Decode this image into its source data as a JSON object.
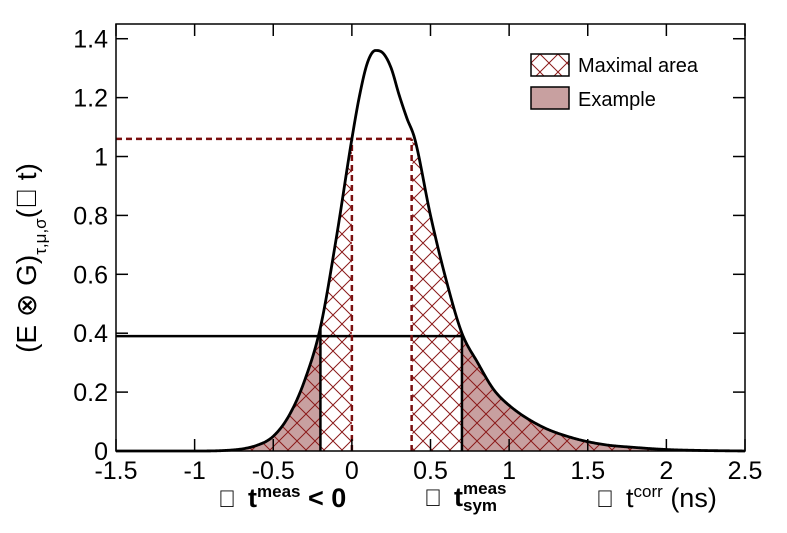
{
  "chart_data": {
    "type": "line",
    "xlim": [
      -1.5,
      2.5
    ],
    "ylim": [
      0,
      1.45
    ],
    "x_ticks": [
      "-1.5",
      "-1",
      "-0.5",
      "0",
      "0.5",
      "1",
      "1.5",
      "2",
      "2.5"
    ],
    "y_ticks": [
      "0",
      "0.2",
      "0.4",
      "0.6",
      "0.8",
      "1",
      "1.2",
      "1.4"
    ],
    "x_tick_values": [
      -1.5,
      -1,
      -0.5,
      0,
      0.5,
      1,
      1.5,
      2,
      2.5
    ],
    "y_tick_values": [
      0,
      0.2,
      0.4,
      0.6,
      0.8,
      1,
      1.2,
      1.4
    ],
    "ylabel": {
      "main": "(E ⊗ G)",
      "sub": "τ,μ,σ",
      "arg": "(􏰀 t)"
    },
    "xlabel": {
      "part1_glyph": "􏰀",
      "part1_text": "t",
      "part1_sup": "meas",
      "part1_suffix": "< 0",
      "part2_glyph": "􏰀",
      "part2_text": "t",
      "part2_sup": "meas",
      "part2_sub": "sym",
      "part3_glyph": "􏰀",
      "part3_text": "t",
      "part3_sup": "corr",
      "part3_suffix": "(ns)"
    },
    "curve": {
      "x": [
        -1.5,
        -1.0,
        -0.8,
        -0.6,
        -0.5,
        -0.4,
        -0.3,
        -0.2,
        -0.1,
        0.0,
        0.05,
        0.1,
        0.15,
        0.2,
        0.25,
        0.3,
        0.35,
        0.4,
        0.5,
        0.6,
        0.7,
        0.8,
        0.9,
        1.0,
        1.2,
        1.4,
        1.6,
        1.8,
        2.0,
        2.2,
        2.5
      ],
      "y": [
        0.0,
        0.0,
        0.002,
        0.02,
        0.05,
        0.12,
        0.24,
        0.42,
        0.72,
        1.06,
        1.21,
        1.32,
        1.36,
        1.35,
        1.3,
        1.21,
        1.13,
        1.06,
        0.8,
        0.58,
        0.4,
        0.3,
        0.21,
        0.155,
        0.085,
        0.045,
        0.022,
        0.012,
        0.005,
        0.002,
        0.0
      ]
    },
    "regions": {
      "example_threshold": 0.39,
      "example_left_x": -0.2,
      "example_right_x": 0.7,
      "maximal_threshold": 1.06,
      "maximal_left_x": 0.0,
      "maximal_right_x": 0.38
    },
    "legend": [
      {
        "label": "Maximal area",
        "style": "hatched"
      },
      {
        "label": "Example",
        "style": "filled"
      }
    ],
    "legend_position": "top-right",
    "colors": {
      "hatch": "#8b1a1a",
      "fill": "#c8a0a0",
      "dashed": "#7a0f0f",
      "curve": "#000000"
    },
    "grid": false
  }
}
